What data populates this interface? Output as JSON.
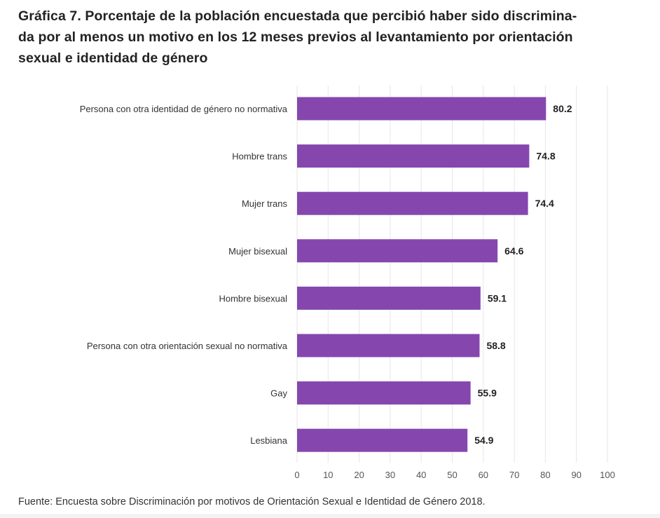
{
  "title": "Gráfica 7. Porcentaje de la población encuestada que percibió haber sido discriminada por al menos un motivo en los 12 meses previos al levantamiento por orientación sexual e identidad de género",
  "title_lines": [
    "Gráfica 7. Porcentaje de la población encuestada que percibió haber sido discrimina-",
    "da por al menos un motivo en los 12 meses previos al levantamiento por orientación",
    "sexual e identidad de género"
  ],
  "source": "Fuente: Encuesta sobre Discriminación por motivos de Orientación Sexual e Identidad de Género 2018.",
  "colors": {
    "bar": "#8547ae",
    "grid": "#e6e6e6"
  },
  "chart_data": {
    "type": "bar",
    "orientation": "horizontal",
    "title": "Gráfica 7. Porcentaje de la población encuestada que percibió haber sido discriminada por al menos un motivo en los 12 meses previos al levantamiento por orientación sexual e identidad de género",
    "categories": [
      "Persona con otra identidad de género no normativa",
      "Hombre trans",
      "Mujer trans",
      "Mujer bisexual",
      "Hombre bisexual",
      "Persona con otra orientación sexual no normativa",
      "Gay",
      "Lesbiana"
    ],
    "values": [
      80.2,
      74.8,
      74.4,
      64.6,
      59.1,
      58.8,
      55.9,
      54.9
    ],
    "value_labels": [
      "80.2",
      "74.8",
      "74.4",
      "64.6",
      "59.1",
      "58.8",
      "55.9",
      "54.9"
    ],
    "xlabel": "",
    "ylabel": "",
    "xlim": [
      0,
      100
    ],
    "xticks": [
      0,
      10,
      20,
      30,
      40,
      50,
      60,
      70,
      80,
      90,
      100
    ],
    "grid": "vertical",
    "legend": "none"
  }
}
